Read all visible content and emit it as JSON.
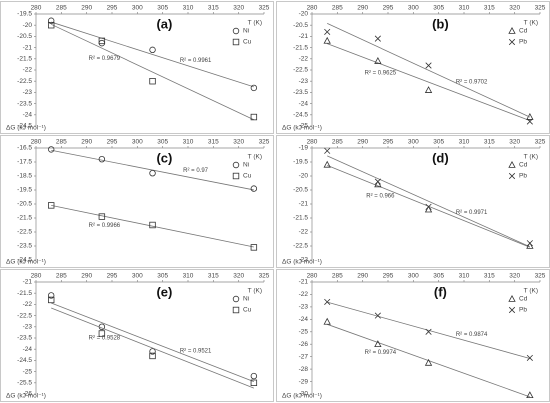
{
  "chart_data": [
    {
      "type": "scatter",
      "title": "(a)",
      "xlabel": "T (K)",
      "ylabel": "ΔG (kJ mol⁻¹)",
      "xlim": [
        280,
        325
      ],
      "xticks": [
        280,
        285,
        290,
        295,
        300,
        305,
        310,
        315,
        320,
        325
      ],
      "ylim": [
        -19.5,
        -24.5
      ],
      "yticks": [
        -19.5,
        -20,
        -20.5,
        -21,
        -21.5,
        -22,
        -22.5,
        -23,
        -23.5,
        -24,
        -24.5
      ],
      "series": [
        {
          "name": "Ni",
          "marker": "circle",
          "color": "#333333",
          "x": [
            283,
            293,
            303,
            323
          ],
          "values": [
            -19.8,
            -20.8,
            -21.1,
            -22.8
          ],
          "r2_label": "R² = 0.9961"
        },
        {
          "name": "Cu",
          "marker": "square",
          "color": "#333333",
          "x": [
            283,
            293,
            303,
            323
          ],
          "values": [
            -20,
            -20.7,
            -22.5,
            -24.1
          ],
          "r2_label": "R² = 0.9679"
        }
      ]
    },
    {
      "type": "scatter",
      "title": "(b)",
      "xlabel": "T (K)",
      "ylabel": "ΔG (kJ mol⁻¹)",
      "xlim": [
        280,
        325
      ],
      "xticks": [
        280,
        285,
        290,
        295,
        300,
        305,
        310,
        315,
        320,
        325
      ],
      "ylim": [
        -20,
        -25
      ],
      "yticks": [
        -20,
        -20.5,
        -21,
        -21.5,
        -22,
        -22.5,
        -23,
        -23.5,
        -24,
        -24.5,
        -25
      ],
      "series": [
        {
          "name": "Cd",
          "marker": "triangle",
          "color": "#333333",
          "x": [
            283,
            293,
            303,
            323
          ],
          "values": [
            -21.2,
            -22.1,
            -23.4,
            -24.6
          ],
          "r2_label": "R² = 0.9625"
        },
        {
          "name": "Pb",
          "marker": "x",
          "color": "#333333",
          "x": [
            283,
            293,
            303,
            323
          ],
          "values": [
            -20.8,
            -21.1,
            -22.3,
            -24.8
          ],
          "r2_label": "R² = 0.9702"
        }
      ]
    },
    {
      "type": "scatter",
      "title": "(c)",
      "xlabel": "T (K)",
      "ylabel": "ΔG (kJ mol⁻¹)",
      "xlim": [
        280,
        325
      ],
      "xticks": [
        280,
        285,
        290,
        295,
        300,
        305,
        310,
        315,
        320,
        325
      ],
      "ylim": [
        -16.5,
        -24.5
      ],
      "yticks": [
        -16.5,
        -17.5,
        -18.5,
        -19.5,
        -20.5,
        -21.5,
        -22.5,
        -23.5,
        -24.5
      ],
      "series": [
        {
          "name": "Ni",
          "marker": "circle",
          "color": "#333333",
          "x": [
            283,
            293,
            303,
            323
          ],
          "values": [
            -16.6,
            -17.3,
            -18.3,
            -19.4
          ],
          "r2_label": "R² = 0.97"
        },
        {
          "name": "Cu",
          "marker": "square",
          "color": "#333333",
          "x": [
            283,
            293,
            303,
            323
          ],
          "values": [
            -20.6,
            -21.4,
            -22,
            -23.6
          ],
          "r2_label": "R² = 0.9966"
        }
      ]
    },
    {
      "type": "scatter",
      "title": "(d)",
      "xlabel": "T (K)",
      "ylabel": "ΔG (kJ mol⁻¹)",
      "xlim": [
        280,
        325
      ],
      "xticks": [
        280,
        285,
        290,
        295,
        300,
        305,
        310,
        315,
        320,
        325
      ],
      "ylim": [
        -19,
        -23
      ],
      "yticks": [
        -19,
        -19.5,
        -20,
        -20.5,
        -21,
        -21.5,
        -22,
        -22.5,
        -23
      ],
      "series": [
        {
          "name": "Cd",
          "marker": "triangle",
          "color": "#333333",
          "x": [
            283,
            293,
            303,
            323
          ],
          "values": [
            -19.6,
            -20.3,
            -21.2,
            -22.5
          ],
          "r2_label": "R² = 0.966"
        },
        {
          "name": "Pb",
          "marker": "x",
          "color": "#333333",
          "x": [
            283,
            293,
            303,
            323
          ],
          "values": [
            -19.1,
            -20.2,
            -21.1,
            -22.4
          ],
          "r2_label": "R² = 0.9971"
        }
      ]
    },
    {
      "type": "scatter",
      "title": "(e)",
      "xlabel": "T (K)",
      "ylabel": "ΔG (kJ mol⁻¹)",
      "xlim": [
        280,
        325
      ],
      "xticks": [
        280,
        285,
        290,
        295,
        300,
        305,
        310,
        315,
        320,
        325
      ],
      "ylim": [
        -21,
        -26
      ],
      "yticks": [
        -21,
        -21.5,
        -22,
        -22.5,
        -23,
        -23.5,
        -24,
        -24.5,
        -25,
        -25.5,
        -26
      ],
      "series": [
        {
          "name": "Ni",
          "marker": "circle",
          "color": "#333333",
          "x": [
            283,
            293,
            303,
            323
          ],
          "values": [
            -21.6,
            -23,
            -24.1,
            -25.2
          ],
          "r2_label": "R² = 0.9521"
        },
        {
          "name": "Cu",
          "marker": "square",
          "color": "#333333",
          "x": [
            283,
            293,
            303,
            323
          ],
          "values": [
            -21.8,
            -23.3,
            -24.3,
            -25.5
          ],
          "r2_label": "R² = 0.9528"
        }
      ]
    },
    {
      "type": "scatter",
      "title": "(f)",
      "xlabel": "T (K)",
      "ylabel": "ΔG (kJ mol⁻¹)",
      "xlim": [
        280,
        325
      ],
      "xticks": [
        280,
        285,
        290,
        295,
        300,
        305,
        310,
        315,
        320,
        325
      ],
      "ylim": [
        -21,
        -30
      ],
      "yticks": [
        -21,
        -22,
        -23,
        -24,
        -25,
        -26,
        -27,
        -28,
        -29,
        -30
      ],
      "series": [
        {
          "name": "Cd",
          "marker": "triangle",
          "color": "#333333",
          "x": [
            283,
            293,
            303,
            323
          ],
          "values": [
            -24.2,
            -26,
            -27.5,
            -30.1
          ],
          "r2_label": "R² = 0.9974"
        },
        {
          "name": "Pb",
          "marker": "x",
          "color": "#333333",
          "x": [
            283,
            293,
            303,
            323
          ],
          "values": [
            -22.6,
            -23.7,
            -25,
            -27.1
          ],
          "r2_label": "R² = 0.9874"
        }
      ]
    }
  ]
}
